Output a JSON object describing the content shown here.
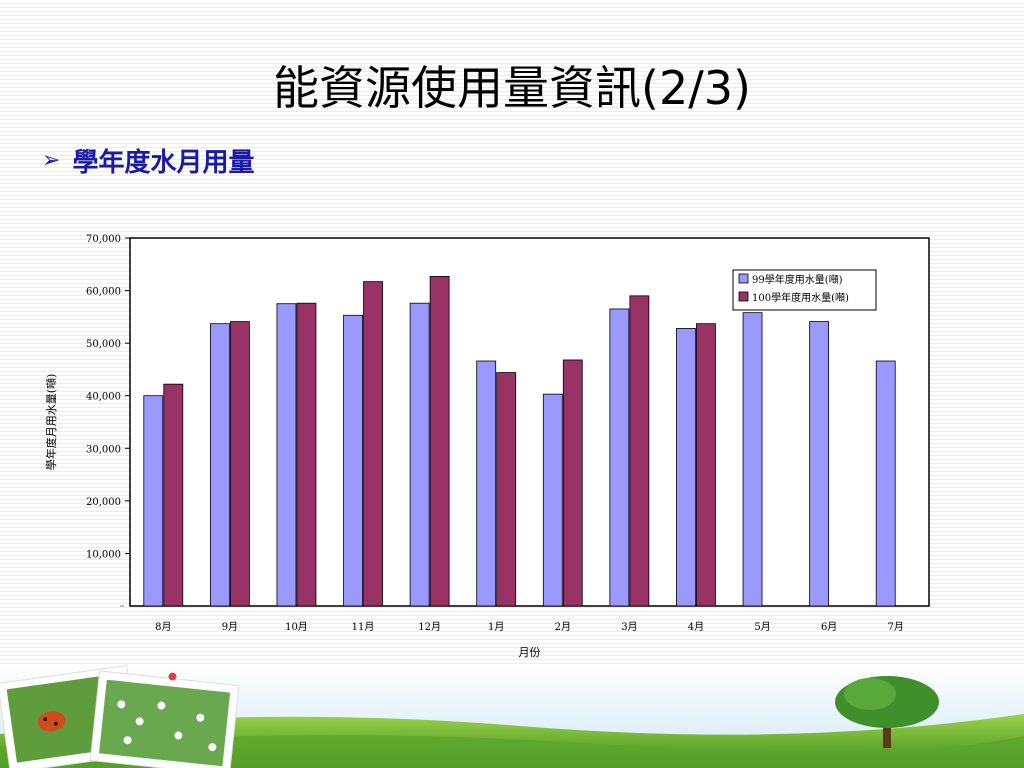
{
  "page": {
    "title": "能資源使用量資訊(2/3)",
    "subtitle": "學年度水月用量",
    "bullet_icon": "arrow-bullet-icon"
  },
  "colors": {
    "series1": "#9999ff",
    "series2": "#993366",
    "subtitle": "#1a1aa6"
  },
  "chart_data": {
    "type": "bar",
    "title": "",
    "xlabel": "月份",
    "ylabel": "學年度月用水量(噸)",
    "categories": [
      "8月",
      "9月",
      "10月",
      "11月",
      "12月",
      "1月",
      "2月",
      "3月",
      "4月",
      "5月",
      "6月",
      "7月"
    ],
    "ylim": [
      0,
      70000
    ],
    "yticks": [
      10000,
      20000,
      30000,
      40000,
      50000,
      60000,
      70000
    ],
    "ytick_labels": [
      "10,000",
      "20,000",
      "30,000",
      "40,000",
      "50,000",
      "60,000",
      "70,000"
    ],
    "grid": false,
    "legend_position": "top-right",
    "series": [
      {
        "name": "99學年度用水量(噸)",
        "color": "#9999ff",
        "values": [
          40000,
          53700,
          57500,
          55300,
          57600,
          46600,
          40300,
          56500,
          52800,
          55800,
          54100,
          46600
        ]
      },
      {
        "name": "100學年度用水量(噸)",
        "color": "#993366",
        "values": [
          42200,
          54100,
          57600,
          61700,
          62700,
          44400,
          46800,
          59000,
          53700,
          null,
          null,
          null
        ]
      }
    ]
  }
}
